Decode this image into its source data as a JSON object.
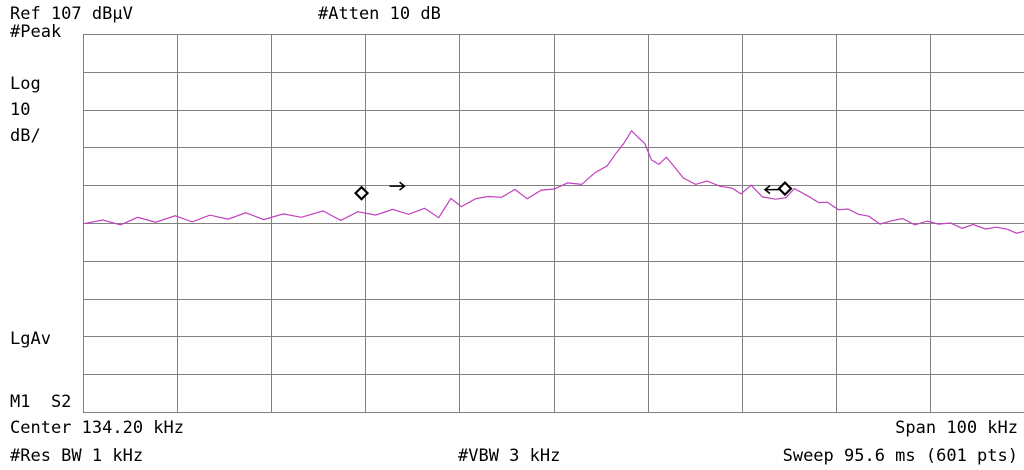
{
  "header": {
    "ref_level": "Ref 107 dBµV",
    "attenuation": "#Atten 10 dB"
  },
  "side_labels": {
    "detector": "#Peak",
    "scale_type": "Log",
    "scale_value": "10",
    "scale_unit": "dB/",
    "average": "LgAv",
    "marker_mode": "M1  S2"
  },
  "footer": {
    "center": "Center 134.20 kHz",
    "span": "Span 100 kHz",
    "rbw": "#Res BW 1 kHz",
    "vbw": "#VBW 3 kHz",
    "sweep": "Sweep 95.6 ms (601 pts)"
  },
  "colors": {
    "trace": "#c040c0",
    "grid": "#808080",
    "marker": "#000000"
  },
  "chart_data": {
    "type": "line",
    "x_unit": "kHz",
    "y_unit": "dBµV",
    "xlim": [
      84.2,
      184.2
    ],
    "ylim": [
      7,
      107
    ],
    "grid": true,
    "series": [
      {
        "points": [
          [
            84.2,
            56.8
          ],
          [
            86.3,
            57.8
          ],
          [
            88.2,
            56.5
          ],
          [
            90.0,
            58.5
          ],
          [
            91.9,
            57.2
          ],
          [
            94.0,
            58.9
          ],
          [
            95.8,
            57.3
          ],
          [
            97.7,
            59.1
          ],
          [
            99.6,
            58.0
          ],
          [
            101.5,
            59.7
          ],
          [
            103.4,
            57.9
          ],
          [
            105.5,
            59.4
          ],
          [
            107.4,
            58.5
          ],
          [
            109.7,
            60.2
          ],
          [
            111.6,
            57.7
          ],
          [
            113.4,
            60.0
          ],
          [
            115.3,
            59.1
          ],
          [
            117.1,
            60.6
          ],
          [
            118.8,
            59.3
          ],
          [
            120.5,
            60.9
          ],
          [
            122.0,
            58.4
          ],
          [
            123.3,
            63.5
          ],
          [
            124.4,
            61.3
          ],
          [
            125.9,
            63.4
          ],
          [
            127.2,
            64.0
          ],
          [
            128.7,
            63.8
          ],
          [
            130.1,
            65.9
          ],
          [
            131.4,
            63.4
          ],
          [
            132.9,
            65.7
          ],
          [
            134.3,
            66.0
          ],
          [
            135.7,
            67.6
          ],
          [
            137.2,
            67.2
          ],
          [
            138.6,
            70.3
          ],
          [
            139.9,
            72.1
          ],
          [
            140.8,
            75.3
          ],
          [
            141.6,
            77.8
          ],
          [
            142.5,
            81.4
          ],
          [
            143.1,
            79.9
          ],
          [
            143.9,
            78.0
          ],
          [
            144.6,
            73.7
          ],
          [
            145.4,
            72.5
          ],
          [
            146.2,
            74.4
          ],
          [
            147.0,
            72.0
          ],
          [
            148.0,
            68.9
          ],
          [
            149.3,
            67.2
          ],
          [
            150.5,
            68.1
          ],
          [
            151.9,
            66.7
          ],
          [
            153.2,
            66.2
          ],
          [
            154.1,
            64.7
          ],
          [
            155.2,
            67.0
          ],
          [
            156.4,
            63.9
          ],
          [
            157.8,
            63.3
          ],
          [
            158.9,
            63.7
          ],
          [
            159.8,
            66.1
          ],
          [
            161.2,
            64.2
          ],
          [
            162.4,
            62.4
          ],
          [
            163.3,
            62.5
          ],
          [
            164.5,
            60.5
          ],
          [
            165.5,
            60.7
          ],
          [
            166.6,
            59.3
          ],
          [
            167.7,
            58.8
          ],
          [
            168.9,
            56.7
          ],
          [
            170.0,
            57.5
          ],
          [
            171.3,
            58.2
          ],
          [
            172.6,
            56.5
          ],
          [
            173.9,
            57.5
          ],
          [
            175.1,
            56.7
          ],
          [
            176.4,
            57.0
          ],
          [
            177.6,
            55.6
          ],
          [
            178.8,
            56.6
          ],
          [
            180.1,
            55.4
          ],
          [
            181.3,
            55.9
          ],
          [
            182.5,
            55.3
          ],
          [
            183.4,
            54.3
          ],
          [
            184.2,
            54.8
          ]
        ]
      }
    ],
    "markers": [
      {
        "x": 113.8,
        "y": 64.9
      },
      {
        "x": 158.8,
        "y": 66.1
      }
    ]
  }
}
